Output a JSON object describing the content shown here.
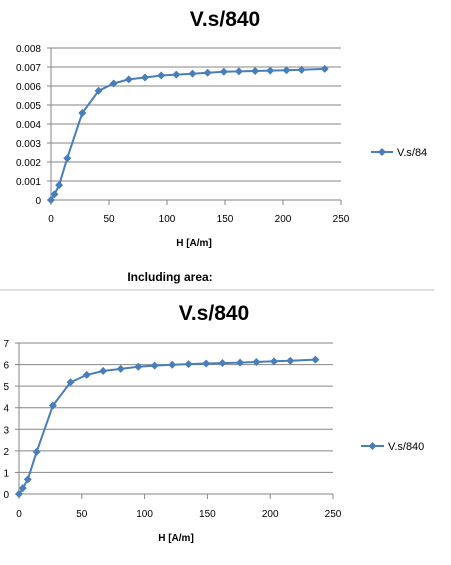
{
  "caption": "Including area:",
  "chart_data": [
    {
      "type": "line",
      "title": "V.s/840",
      "xlabel": "H [A/m]",
      "ylabel": "",
      "xlim": [
        0,
        250
      ],
      "ylim": [
        0,
        0.008
      ],
      "xticks": [
        0,
        50,
        100,
        150,
        200,
        250
      ],
      "yticks": [
        0,
        0.001,
        0.002,
        0.003,
        0.004,
        0.005,
        0.006,
        0.007,
        0.008
      ],
      "ytick_labels": [
        "0",
        "0.001",
        "0.002",
        "0.003",
        "0.004",
        "0.005",
        "0.006",
        "0.007",
        "0.008"
      ],
      "grid": true,
      "legend_position": "right",
      "series": [
        {
          "name": "V.s/84",
          "color": "#4a7ebb",
          "marker": "diamond",
          "x": [
            0,
            3,
            7,
            14,
            27,
            41,
            54,
            67,
            81,
            95,
            108,
            122,
            135,
            149,
            162,
            176,
            189,
            203,
            216,
            236
          ],
          "y": [
            0,
            0.0003,
            0.00078,
            0.0022,
            0.00458,
            0.00575,
            0.00613,
            0.00635,
            0.00645,
            0.00655,
            0.0066,
            0.00665,
            0.0067,
            0.00675,
            0.00677,
            0.00679,
            0.00681,
            0.00683,
            0.00685,
            0.0069
          ]
        }
      ]
    },
    {
      "type": "line",
      "title": "V.s/840",
      "xlabel": "H [A/m]",
      "ylabel": "",
      "xlim": [
        0,
        250
      ],
      "ylim": [
        0,
        7
      ],
      "xticks": [
        0,
        50,
        100,
        150,
        200,
        250
      ],
      "yticks": [
        0,
        1,
        2,
        3,
        4,
        5,
        6,
        7
      ],
      "ytick_labels": [
        "0",
        "1",
        "2",
        "3",
        "4",
        "5",
        "6",
        "7"
      ],
      "grid": true,
      "legend_position": "right",
      "series": [
        {
          "name": "V.s/840",
          "color": "#4a7ebb",
          "marker": "diamond",
          "x": [
            0,
            3,
            7,
            14,
            27,
            41,
            54,
            67,
            81,
            95,
            108,
            122,
            135,
            149,
            162,
            176,
            189,
            203,
            216,
            236
          ],
          "y": [
            0,
            0.27,
            0.68,
            1.95,
            4.1,
            5.18,
            5.52,
            5.7,
            5.8,
            5.9,
            5.95,
            5.99,
            6.02,
            6.05,
            6.07,
            6.09,
            6.12,
            6.15,
            6.18,
            6.23
          ]
        }
      ]
    }
  ]
}
